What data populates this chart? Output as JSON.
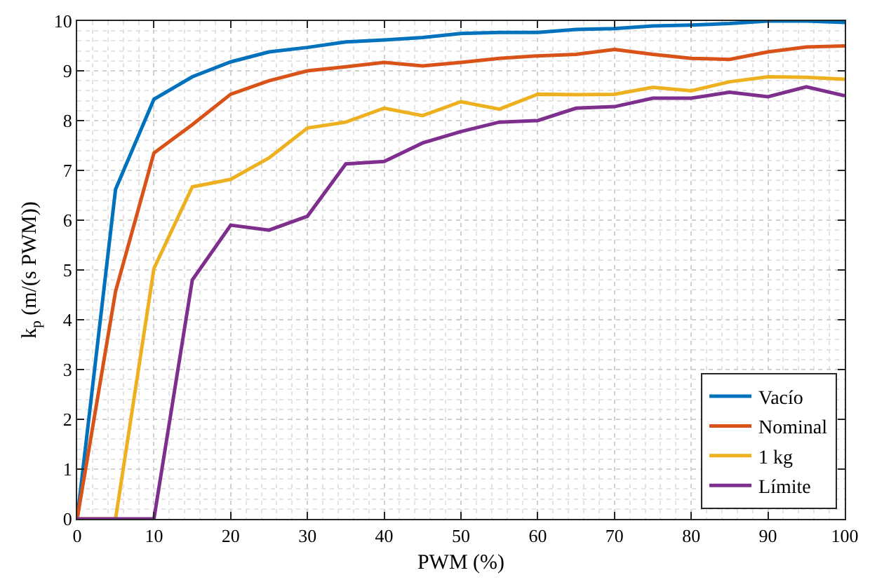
{
  "chart_data": {
    "type": "line",
    "xlabel": "PWM (%)",
    "ylabel": "k$_{p}$ (m/(s PWM))",
    "x": [
      0,
      5,
      10,
      15,
      20,
      25,
      30,
      35,
      40,
      45,
      50,
      55,
      60,
      65,
      70,
      75,
      80,
      85,
      90,
      95,
      100
    ],
    "xlim": [
      0,
      100
    ],
    "xticks": [
      0,
      10,
      20,
      30,
      40,
      50,
      60,
      70,
      80,
      90,
      100
    ],
    "ylim": [
      0,
      10
    ],
    "yticks": [
      0,
      1,
      2,
      3,
      4,
      5,
      6,
      7,
      8,
      9,
      10
    ],
    "grid": true,
    "legend": "bottom right",
    "marker": "none",
    "line_style": "solid",
    "series": [
      {
        "name": "Vacío",
        "color": "#0072bd",
        "values": [
          0,
          6.62,
          8.43,
          8.88,
          9.18,
          9.38,
          9.47,
          9.58,
          9.62,
          9.67,
          9.75,
          9.77,
          9.77,
          9.83,
          9.85,
          9.9,
          9.92,
          9.95,
          10.0,
          10.0,
          9.97
        ]
      },
      {
        "name": "Nominal",
        "color": "#d95319",
        "values": [
          0,
          4.57,
          7.35,
          7.92,
          8.53,
          8.8,
          9.0,
          9.08,
          9.17,
          9.1,
          9.17,
          9.25,
          9.3,
          9.33,
          9.43,
          9.33,
          9.25,
          9.23,
          9.38,
          9.48,
          9.5
        ]
      },
      {
        "name": "1 kg",
        "color": "#edb120",
        "values": [
          0,
          0,
          5.03,
          6.67,
          6.82,
          7.25,
          7.85,
          7.97,
          8.25,
          8.1,
          8.38,
          8.23,
          8.53,
          8.52,
          8.53,
          8.67,
          8.6,
          8.78,
          8.88,
          8.87,
          8.83
        ]
      },
      {
        "name": "Límite",
        "color": "#7e2f8e",
        "values": [
          0,
          0,
          0,
          4.8,
          5.9,
          5.8,
          6.08,
          7.13,
          7.18,
          7.55,
          7.78,
          7.97,
          8.0,
          8.25,
          8.28,
          8.45,
          8.45,
          8.57,
          8.48,
          8.68,
          8.5
        ]
      }
    ]
  }
}
